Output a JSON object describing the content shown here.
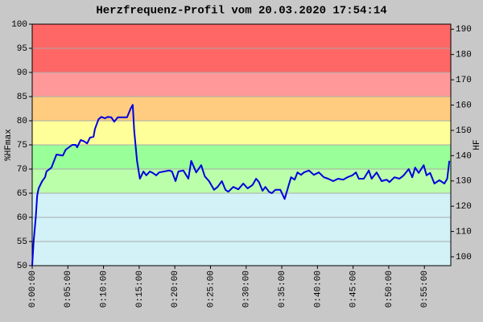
{
  "chart_data": {
    "type": "line",
    "title": "Herzfrequenz-Profil vom 20.03.2020 17:54:14",
    "ylabel": "%HFmax",
    "y2label": "HF",
    "xlim": [
      0,
      58.7
    ],
    "ylim": [
      50,
      100
    ],
    "y2lim": [
      96.5,
      192
    ],
    "xticks": [
      {
        "value": 0,
        "label": "0:00:00"
      },
      {
        "value": 5,
        "label": "0:05:00"
      },
      {
        "value": 10,
        "label": "0:10:00"
      },
      {
        "value": 15,
        "label": "0:15:00"
      },
      {
        "value": 20,
        "label": "0:20:00"
      },
      {
        "value": 25,
        "label": "0:25:00"
      },
      {
        "value": 30,
        "label": "0:30:00"
      },
      {
        "value": 35,
        "label": "0:35:00"
      },
      {
        "value": 40,
        "label": "0:40:00"
      },
      {
        "value": 45,
        "label": "0:45:00"
      },
      {
        "value": 50,
        "label": "0:50:00"
      },
      {
        "value": 55,
        "label": "0:55:00"
      }
    ],
    "yticks": [
      50,
      55,
      60,
      65,
      70,
      75,
      80,
      85,
      90,
      95,
      100
    ],
    "y2ticks": [
      100,
      110,
      120,
      130,
      140,
      150,
      160,
      170,
      180,
      190
    ],
    "grid": true,
    "zones": [
      {
        "from": 90,
        "to": 100,
        "color": "#ff6666"
      },
      {
        "from": 85,
        "to": 90,
        "color": "#ff9999"
      },
      {
        "from": 80,
        "to": 85,
        "color": "#ffcc80"
      },
      {
        "from": 75,
        "to": 80,
        "color": "#ffff99"
      },
      {
        "from": 70,
        "to": 75,
        "color": "#99ff99"
      },
      {
        "from": 65,
        "to": 70,
        "color": "#bbffaa"
      },
      {
        "from": 50,
        "to": 65,
        "color": "#d2f2f8"
      }
    ],
    "x": [
      0,
      0.2,
      0.5,
      0.7,
      0.9,
      1.4,
      1.8,
      2.0,
      2.7,
      3.4,
      4.3,
      4.7,
      5.6,
      6.1,
      6.3,
      6.8,
      7.2,
      7.7,
      8.1,
      8.6,
      8.8,
      9.3,
      9.7,
      10.2,
      10.6,
      11.1,
      11.5,
      12.0,
      13.3,
      13.8,
      14.1,
      14.3,
      14.7,
      15.1,
      15.6,
      16.0,
      16.5,
      16.9,
      17.4,
      17.8,
      18.5,
      19.2,
      19.6,
      20.1,
      20.5,
      21.2,
      21.9,
      22.3,
      23.0,
      23.7,
      24.2,
      24.8,
      25.5,
      26.0,
      26.6,
      27.1,
      27.5,
      28.2,
      28.9,
      29.6,
      30.2,
      30.9,
      31.4,
      31.8,
      32.3,
      32.7,
      33.2,
      33.6,
      34.1,
      34.8,
      35.4,
      35.9,
      36.3,
      36.8,
      37.2,
      37.7,
      38.1,
      38.8,
      39.5,
      40.2,
      40.9,
      41.5,
      42.2,
      42.9,
      43.6,
      44.2,
      44.9,
      45.4,
      45.8,
      46.5,
      47.2,
      47.6,
      48.3,
      49.0,
      49.7,
      50.1,
      50.8,
      51.5,
      52.1,
      52.8,
      53.3,
      53.7,
      54.2,
      54.9,
      55.3,
      55.8,
      56.4,
      57.1,
      57.8,
      58.2,
      58.5
    ],
    "series": [
      {
        "color": "#0000dd",
        "values": [
          50,
          55,
          60,
          64.5,
          66,
          67.5,
          68.3,
          69.5,
          70.3,
          73,
          72.8,
          74,
          75,
          75,
          74.5,
          76,
          75.8,
          75.3,
          76.5,
          76.7,
          78.3,
          80.3,
          80.8,
          80.5,
          80.8,
          80.7,
          79.8,
          80.7,
          80.7,
          82.5,
          83.3,
          78,
          71.7,
          68,
          69.5,
          68.7,
          69.5,
          69.2,
          68.7,
          69.3,
          69.5,
          69.7,
          69.5,
          67.5,
          69.5,
          69.7,
          68,
          71.7,
          69.3,
          70.8,
          68.5,
          67.5,
          65.7,
          66.3,
          67.5,
          65.7,
          65.3,
          66.3,
          65.8,
          67,
          66,
          66.7,
          68,
          67.3,
          65.5,
          66.3,
          65.3,
          65,
          65.7,
          65.7,
          63.8,
          66.3,
          68.3,
          67.8,
          69.3,
          68.8,
          69.3,
          69.7,
          68.8,
          69.3,
          68.3,
          68,
          67.5,
          68,
          67.8,
          68.3,
          68.7,
          69.3,
          68,
          68,
          69.7,
          68,
          69.3,
          67.5,
          67.8,
          67.3,
          68.3,
          68,
          68.7,
          70,
          68.3,
          70.3,
          69.2,
          70.8,
          68.7,
          69.2,
          67,
          67.7,
          67,
          68,
          71.7
        ]
      }
    ]
  }
}
